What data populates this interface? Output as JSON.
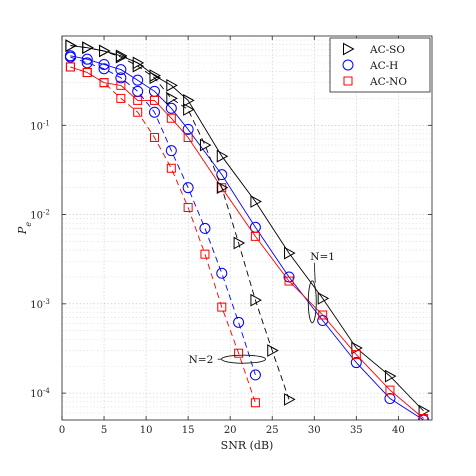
{
  "chart_data": {
    "type": "line",
    "xlabel": "SNR (dB)",
    "ylabel": "P_e",
    "ylabel_main": "P",
    "ylabel_sub": "e",
    "xlim": [
      0,
      44
    ],
    "ylim": [
      5e-05,
      1
    ],
    "yscale": "log",
    "grid": true,
    "legend_position": "top-right",
    "x_ticks": [
      0,
      5,
      10,
      15,
      20,
      25,
      30,
      35,
      40
    ],
    "y_ticks": [
      {
        "value": 0.1,
        "base": "10",
        "exp": "-1"
      },
      {
        "value": 0.01,
        "base": "10",
        "exp": "-2"
      },
      {
        "value": 0.001,
        "base": "10",
        "exp": "-3"
      },
      {
        "value": 0.0001,
        "base": "10",
        "exp": "-4"
      }
    ],
    "series": [
      {
        "name": "AC-SO",
        "group": "N=1",
        "color": "#000000",
        "marker": "triangle-right",
        "dashed": false,
        "x": [
          1,
          3,
          5,
          7,
          9,
          11,
          13,
          15,
          19,
          23,
          27,
          31,
          35,
          39,
          43
        ],
        "y": [
          0.78,
          0.74,
          0.68,
          0.6,
          0.5,
          0.36,
          0.28,
          0.19,
          0.045,
          0.014,
          0.0037,
          0.00115,
          0.00032,
          0.000155,
          6.3e-05
        ]
      },
      {
        "name": "AC-H",
        "group": "N=1",
        "color": "#0000ff",
        "marker": "circle",
        "dashed": false,
        "x": [
          1,
          3,
          5,
          7,
          9,
          11,
          13,
          15,
          19,
          23,
          27,
          31,
          35,
          39,
          43
        ],
        "y": [
          0.6,
          0.55,
          0.48,
          0.42,
          0.32,
          0.24,
          0.155,
          0.09,
          0.028,
          0.0072,
          0.002,
          0.00065,
          0.00022,
          8.7e-05,
          5e-05
        ]
      },
      {
        "name": "AC-NO",
        "group": "N=1",
        "color": "#ff0000",
        "marker": "square",
        "dashed": false,
        "x": [
          1,
          3,
          5,
          7,
          9,
          11,
          13,
          15,
          19,
          23,
          27,
          31,
          35,
          39,
          43
        ],
        "y": [
          0.45,
          0.39,
          0.3,
          0.28,
          0.19,
          0.19,
          0.12,
          0.073,
          0.02,
          0.0057,
          0.0018,
          0.00075,
          0.00027,
          0.000108,
          5.2e-05
        ]
      },
      {
        "name": "AC-SO",
        "group": "N=2",
        "color": "#000000",
        "marker": "triangle-right",
        "dashed": true,
        "x": [
          1,
          3,
          5,
          7,
          9,
          11,
          13,
          15,
          17,
          19,
          21,
          23,
          25,
          27
        ],
        "y": [
          0.78,
          0.74,
          0.68,
          0.58,
          0.46,
          0.34,
          0.2,
          0.15,
          0.06,
          0.02,
          0.0048,
          0.0011,
          0.0003,
          8.5e-05
        ]
      },
      {
        "name": "AC-H",
        "group": "N=2",
        "color": "#0000ff",
        "marker": "circle",
        "dashed": true,
        "x": [
          1,
          3,
          5,
          7,
          9,
          11,
          13,
          15,
          17,
          19,
          21,
          23
        ],
        "y": [
          0.58,
          0.5,
          0.43,
          0.34,
          0.24,
          0.14,
          0.052,
          0.02,
          0.007,
          0.0022,
          0.00062,
          0.00016
        ]
      },
      {
        "name": "AC-NO",
        "group": "N=2",
        "color": "#ff0000",
        "marker": "square",
        "dashed": true,
        "x": [
          1,
          3,
          5,
          7,
          9,
          11,
          13,
          15,
          17,
          19,
          21,
          23
        ],
        "y": [
          0.45,
          0.39,
          0.3,
          0.2,
          0.14,
          0.073,
          0.033,
          0.012,
          0.0036,
          0.00092,
          0.00028,
          7.8e-05
        ]
      }
    ],
    "legend": [
      {
        "label": "AC-SO",
        "color": "#000000",
        "marker": "triangle-right"
      },
      {
        "label": "AC-H",
        "color": "#0000ff",
        "marker": "circle"
      },
      {
        "label": "AC-NO",
        "color": "#ff0000",
        "marker": "square"
      }
    ],
    "annotations": [
      {
        "text": "N=1",
        "x": 30,
        "y": 0.0012
      },
      {
        "text": "N=2",
        "x": 21,
        "y": 0.00024
      }
    ]
  }
}
